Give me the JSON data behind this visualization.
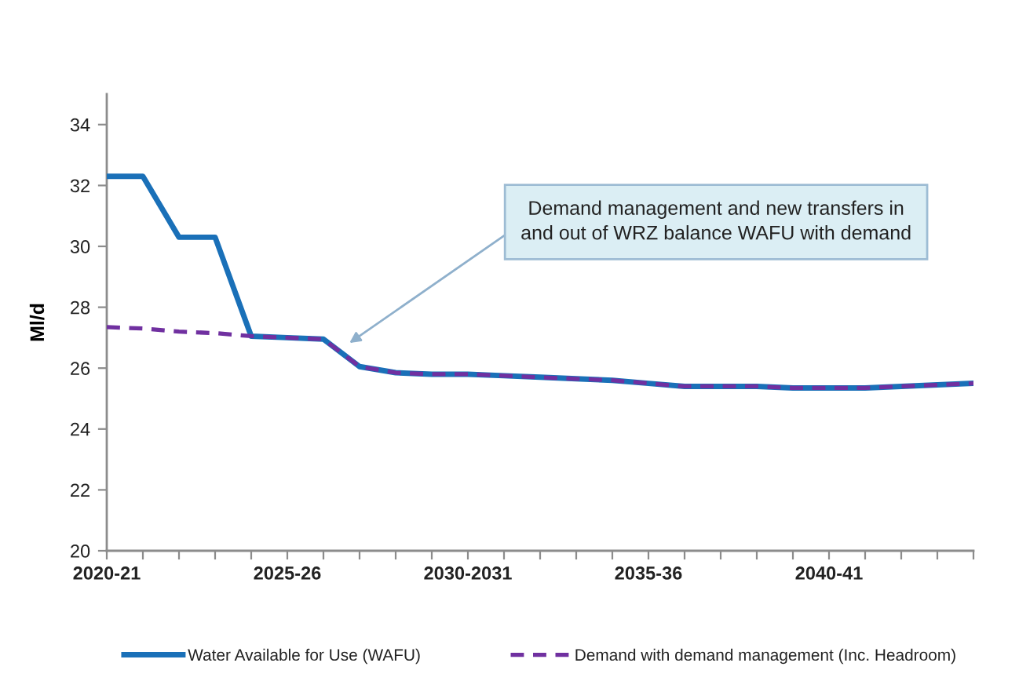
{
  "chart_data": {
    "type": "line",
    "ylabel": "Ml/d",
    "categories": [
      "2020-21",
      null,
      null,
      null,
      null,
      "2025-26",
      null,
      null,
      null,
      null,
      "2030-2031",
      null,
      null,
      null,
      null,
      "2035-36",
      null,
      null,
      null,
      null,
      "2040-41",
      null,
      null,
      null,
      null
    ],
    "ylim": [
      20,
      35
    ],
    "yticks": [
      20,
      22,
      24,
      26,
      28,
      30,
      32,
      34
    ],
    "grid": false,
    "legend": "bottom",
    "marker": "none",
    "annotations": [
      "Demand management and new transfers in\nand out of WRZ balance WAFU with demand"
    ],
    "series": [
      {
        "name": "Water Available for Use (WAFU)",
        "color": "#1a70b8",
        "line_style": "solid",
        "values": [
          32.3,
          32.3,
          30.3,
          30.3,
          27.05,
          27.0,
          26.95,
          26.05,
          25.85,
          25.8,
          25.8,
          25.75,
          25.7,
          25.65,
          25.6,
          25.5,
          25.4,
          25.4,
          25.4,
          25.35,
          25.35,
          25.35,
          25.4,
          25.45,
          25.5
        ]
      },
      {
        "name": "Demand with demand management (Inc. Headroom)",
        "color": "#7030a0",
        "line_style": "dashed",
        "values": [
          27.35,
          27.3,
          27.2,
          27.15,
          27.05,
          27.0,
          26.95,
          26.05,
          25.85,
          25.8,
          25.8,
          25.75,
          25.7,
          25.65,
          25.6,
          25.5,
          25.4,
          25.4,
          25.4,
          25.35,
          25.35,
          25.35,
          25.4,
          25.45,
          25.5
        ]
      }
    ]
  }
}
